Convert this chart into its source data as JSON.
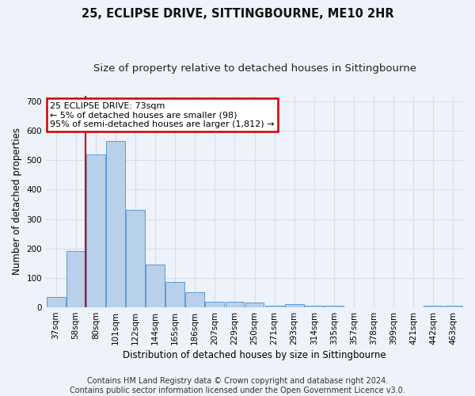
{
  "title": "25, ECLIPSE DRIVE, SITTINGBOURNE, ME10 2HR",
  "subtitle": "Size of property relative to detached houses in Sittingbourne",
  "xlabel": "Distribution of detached houses by size in Sittingbourne",
  "ylabel": "Number of detached properties",
  "footer_line1": "Contains HM Land Registry data © Crown copyright and database right 2024.",
  "footer_line2": "Contains public sector information licensed under the Open Government Licence v3.0.",
  "categories": [
    "37sqm",
    "58sqm",
    "80sqm",
    "101sqm",
    "122sqm",
    "144sqm",
    "165sqm",
    "186sqm",
    "207sqm",
    "229sqm",
    "250sqm",
    "271sqm",
    "293sqm",
    "314sqm",
    "335sqm",
    "357sqm",
    "378sqm",
    "399sqm",
    "421sqm",
    "442sqm",
    "463sqm"
  ],
  "values": [
    35,
    190,
    520,
    565,
    330,
    145,
    85,
    50,
    20,
    20,
    15,
    5,
    10,
    5,
    5,
    0,
    0,
    0,
    0,
    5,
    5
  ],
  "bar_color": "#b8d0ea",
  "bar_edge_color": "#5b9bd5",
  "annotation_line1": "25 ECLIPSE DRIVE: 73sqm",
  "annotation_line2": "← 5% of detached houses are smaller (98)",
  "annotation_line3": "95% of semi-detached houses are larger (1,812) →",
  "annotation_box_facecolor": "#ffffff",
  "annotation_box_edgecolor": "#cc0000",
  "vline_color": "#cc0000",
  "vline_x_index": 1.5,
  "ylim": [
    0,
    720
  ],
  "yticks": [
    0,
    100,
    200,
    300,
    400,
    500,
    600,
    700
  ],
  "grid_color": "#d8dde8",
  "background_color": "#eef2fa",
  "title_fontsize": 10.5,
  "subtitle_fontsize": 9.5,
  "axis_label_fontsize": 8.5,
  "tick_fontsize": 7.5,
  "annotation_fontsize": 8,
  "footer_fontsize": 7
}
